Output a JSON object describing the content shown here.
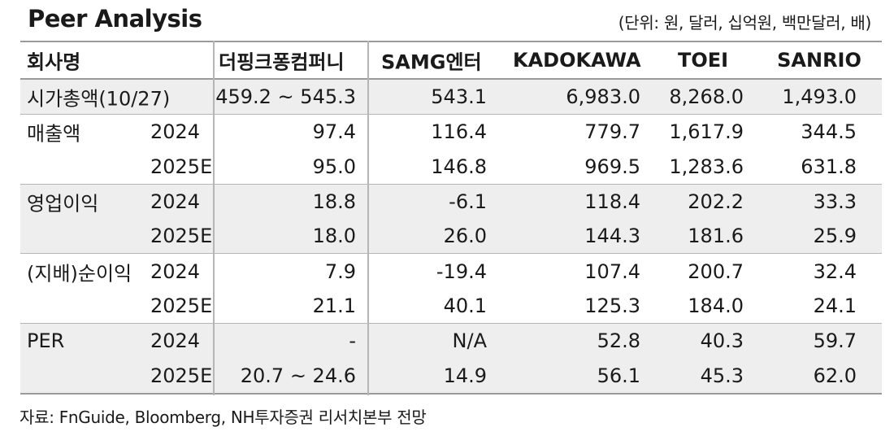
{
  "header": {
    "title": "Peer Analysis",
    "unit_note": "(단위: 원, 달러, 십억원, 백만달러, 배)"
  },
  "columns": [
    "회사명",
    "더핑크퐁컴퍼니",
    "SAMG엔터",
    "KADOKAWA",
    "TOEI",
    "SANRIO"
  ],
  "rows": [
    {
      "label": "시가총액(10/27)",
      "year": "",
      "values": [
        "459.2 ~ 545.3",
        "543.1",
        "6,983.0",
        "8,268.0",
        "1,493.0"
      ]
    },
    {
      "label": "매출액",
      "year": "2024",
      "values": [
        "97.4",
        "116.4",
        "779.7",
        "1,617.9",
        "344.5"
      ]
    },
    {
      "label": "",
      "year": "2025E",
      "values": [
        "95.0",
        "146.8",
        "969.5",
        "1,283.6",
        "631.8"
      ]
    },
    {
      "label": "영업이익",
      "year": "2024",
      "values": [
        "18.8",
        "-6.1",
        "118.4",
        "202.2",
        "33.3"
      ]
    },
    {
      "label": "",
      "year": "2025E",
      "values": [
        "18.0",
        "26.0",
        "144.3",
        "181.6",
        "25.9"
      ]
    },
    {
      "label": "(지배)순이익",
      "year": "2024",
      "values": [
        "7.9",
        "-19.4",
        "107.4",
        "200.7",
        "32.4"
      ]
    },
    {
      "label": "",
      "year": "2025E",
      "values": [
        "21.1",
        "40.1",
        "125.3",
        "184.0",
        "24.1"
      ]
    },
    {
      "label": "PER",
      "year": "2024",
      "values": [
        "-",
        "N/A",
        "52.8",
        "40.3",
        "59.7"
      ]
    },
    {
      "label": "",
      "year": "2025E",
      "values": [
        "20.7 ~ 24.6",
        "14.9",
        "56.1",
        "45.3",
        "62.0"
      ]
    }
  ],
  "footer": {
    "source": "자료: FnGuide, Bloomberg, NH투자증권 리서치본부 전망"
  }
}
